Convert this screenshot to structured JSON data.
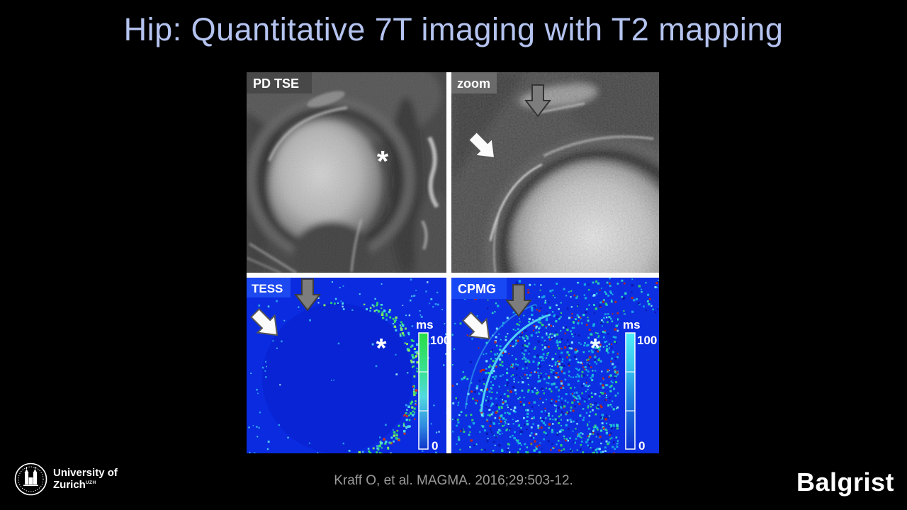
{
  "slide": {
    "title": "Hip: Quantitative 7T imaging with T2 mapping",
    "citation": "Kraff O, et al. MAGMA. 2016;29:503-12."
  },
  "colors": {
    "title_text": "#b4c3ef",
    "citation_text": "#9a9a9a",
    "t2map_blue": "#0a2be0",
    "slide_background": "#000000"
  },
  "figure": {
    "asterisk_char": "*",
    "panels": [
      {
        "label": "PD TSE"
      },
      {
        "label": "zoom"
      },
      {
        "label": "TESS",
        "colorbar": {
          "unit": "ms",
          "max": "100",
          "min": "0"
        }
      },
      {
        "label": "CPMG",
        "colorbar": {
          "unit": "ms",
          "max": "100",
          "min": "0"
        }
      }
    ]
  },
  "footer": {
    "uzh": {
      "line1": "University of",
      "line2": "Zurich",
      "sup": "UZH"
    },
    "balgrist": "Balgrist"
  }
}
